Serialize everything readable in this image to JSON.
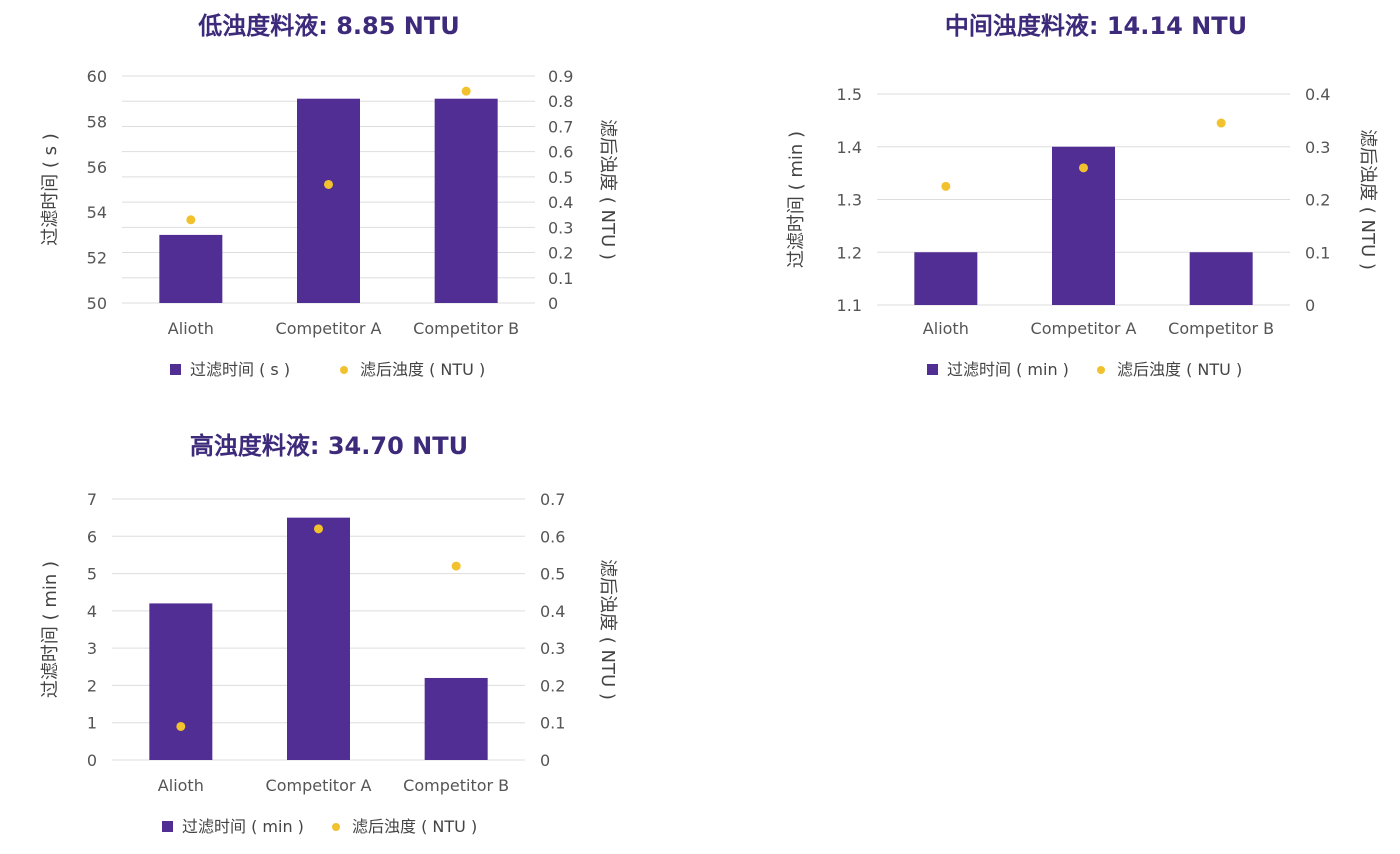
{
  "colors": {
    "bar": "#512e93",
    "dot": "#f2c12e",
    "title": "#3d2a7a",
    "grid": "#dddddd",
    "text": "#555555"
  },
  "chart_data": [
    {
      "type": "bar",
      "title": "低浊度料液: 8.85 NTU",
      "categories": [
        "Alioth",
        "Competitor A",
        "Competitor B"
      ],
      "ylabel": "过滤时间 ( s )",
      "y2label": "滤后浊度 ( NTU )",
      "ylim": [
        50,
        60
      ],
      "yticks": [
        50,
        52,
        54,
        56,
        58,
        60
      ],
      "y2lim": [
        0,
        0.9
      ],
      "y2ticks": [
        0,
        0.1,
        0.2,
        0.3,
        0.4,
        0.5,
        0.6,
        0.7,
        0.8,
        0.9
      ],
      "grid": true,
      "legend_position": "bottom",
      "series": [
        {
          "name": "过滤时间 ( s )",
          "type": "bar",
          "axis": "left",
          "values": [
            53,
            59,
            59
          ]
        },
        {
          "name": "滤后浊度 ( NTU )",
          "type": "scatter",
          "axis": "right",
          "values": [
            0.33,
            0.47,
            0.84
          ]
        }
      ]
    },
    {
      "type": "bar",
      "title": "中间浊度料液: 14.14 NTU",
      "categories": [
        "Alioth",
        "Competitor A",
        "Competitor B"
      ],
      "ylabel": "过滤时间 ( min )",
      "y2label": "滤后浊度 ( NTU )",
      "ylim": [
        1.1,
        1.5
      ],
      "yticks": [
        1.1,
        1.2,
        1.3,
        1.4,
        1.5
      ],
      "y2lim": [
        0,
        0.4
      ],
      "y2ticks": [
        0,
        0.1,
        0.2,
        0.3,
        0.4
      ],
      "grid": true,
      "legend_position": "bottom",
      "series": [
        {
          "name": "过滤时间 ( min )",
          "type": "bar",
          "axis": "left",
          "values": [
            1.2,
            1.4,
            1.2
          ]
        },
        {
          "name": "滤后浊度 ( NTU )",
          "type": "scatter",
          "axis": "right",
          "values": [
            0.225,
            0.26,
            0.345
          ]
        }
      ]
    },
    {
      "type": "bar",
      "title": "高浊度料液: 34.70 NTU",
      "categories": [
        "Alioth",
        "Competitor A",
        "Competitor B"
      ],
      "ylabel": "过滤时间 ( min )",
      "y2label": "滤后浊度 ( NTU )",
      "ylim": [
        0,
        7
      ],
      "yticks": [
        0,
        1,
        2,
        3,
        4,
        5,
        6,
        7
      ],
      "y2lim": [
        0,
        0.7
      ],
      "y2ticks": [
        0,
        0.1,
        0.2,
        0.3,
        0.4,
        0.5,
        0.6,
        0.7
      ],
      "grid": true,
      "legend_position": "bottom",
      "series": [
        {
          "name": "过滤时间 ( min )",
          "type": "bar",
          "axis": "left",
          "values": [
            4.2,
            6.5,
            2.2
          ]
        },
        {
          "name": "滤后浊度 ( NTU )",
          "type": "scatter",
          "axis": "right",
          "values": [
            0.09,
            0.62,
            0.52
          ]
        }
      ]
    }
  ]
}
